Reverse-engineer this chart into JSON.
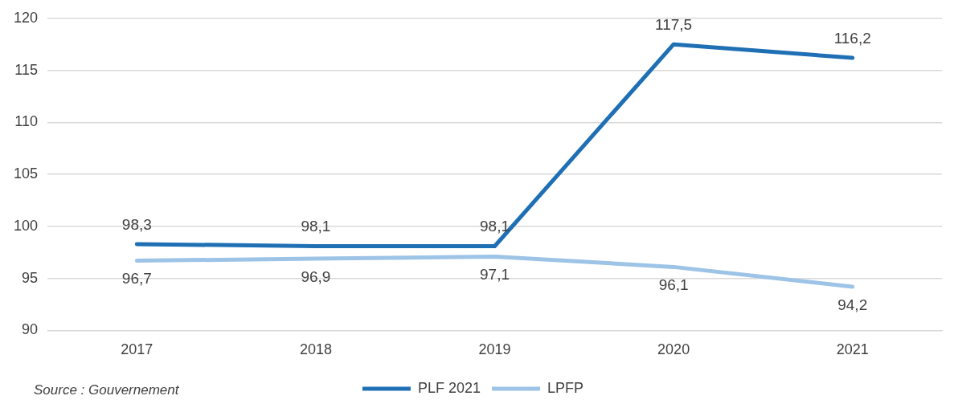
{
  "chart_data": {
    "type": "line",
    "categories": [
      "2017",
      "2018",
      "2019",
      "2020",
      "2021"
    ],
    "series": [
      {
        "name": "PLF 2021",
        "color": "#1f6fb5",
        "values": [
          98.3,
          98.1,
          98.1,
          117.5,
          116.2
        ],
        "value_labels": [
          "98,3",
          "98,1",
          "98,1",
          "117,5",
          "116,2"
        ]
      },
      {
        "name": "LPFP",
        "color": "#9dc3e6",
        "values": [
          96.7,
          96.9,
          97.1,
          96.1,
          94.2
        ],
        "value_labels": [
          "96,7",
          "96,9",
          "97,1",
          "96,1",
          "94,2"
        ]
      }
    ],
    "ylim": [
      90,
      120
    ],
    "yticks": [
      90,
      95,
      100,
      105,
      110,
      115,
      120
    ],
    "grid": "y",
    "legend": "bottom",
    "marker": "none",
    "line_style": "solid",
    "annotations": [
      "Source : Gouvernement"
    ]
  }
}
